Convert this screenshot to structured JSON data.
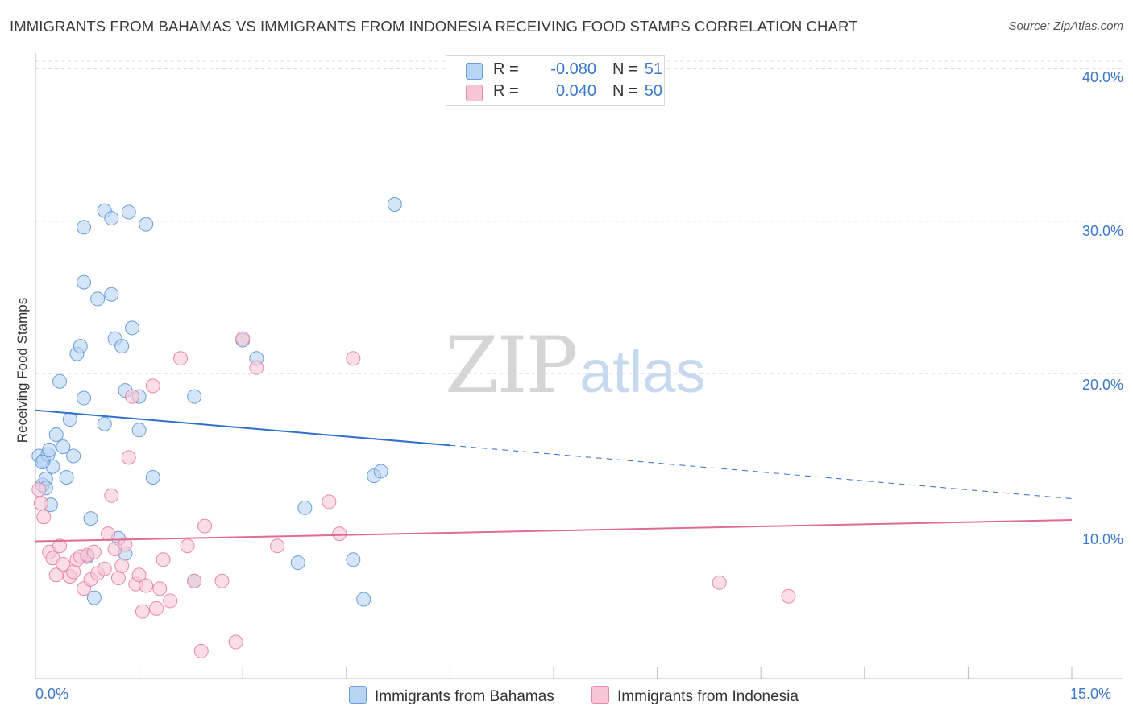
{
  "title": "IMMIGRANTS FROM BAHAMAS VS IMMIGRANTS FROM INDONESIA RECEIVING FOOD STAMPS CORRELATION CHART",
  "source": "Source: ZipAtlas.com",
  "watermark": {
    "zip": "ZIP",
    "atlas": "atlas"
  },
  "legend": {
    "rows": [
      {
        "r_label": "R =",
        "r_value": "-0.080",
        "n_label": "N =",
        "n_value": "51"
      },
      {
        "r_label": "R =",
        "r_value": "0.040",
        "n_label": "N =",
        "n_value": "50"
      }
    ]
  },
  "colors": {
    "bahamas_fill": "#b8d3f3",
    "bahamas_stroke": "#6a9fd8",
    "bahamas_line": "#2f6fcc",
    "indonesia_fill": "#f7c6d6",
    "indonesia_stroke": "#e88aa8",
    "indonesia_line": "#e06b93",
    "accent_text": "#3a78c9",
    "grid": "#dddddd"
  },
  "chart_data": {
    "type": "scatter",
    "title": "IMMIGRANTS FROM BAHAMAS VS IMMIGRANTS FROM INDONESIA RECEIVING FOOD STAMPS CORRELATION CHART",
    "xlabel": "",
    "ylabel": "Receiving Food Stamps",
    "xlim": [
      0,
      15
    ],
    "ylim": [
      0,
      40.5
    ],
    "x_tick_labels": [
      "0.0%",
      "15.0%"
    ],
    "y_ticks": [
      10,
      20,
      30,
      40
    ],
    "y_tick_labels": [
      "10.0%",
      "20.0%",
      "30.0%",
      "40.0%"
    ],
    "grid": true,
    "legend_position": "top-center",
    "series": [
      {
        "name": "Immigrants from Bahamas",
        "color": "#6a9fd8",
        "trend": {
          "x0": 0,
          "y0": 17.6,
          "x1": 6,
          "y1": 15.3,
          "dashed_to_x": 15,
          "dashed_to_y": 11.8
        },
        "points": [
          [
            0.05,
            14.6
          ],
          [
            0.1,
            12.7
          ],
          [
            0.12,
            14.3
          ],
          [
            0.15,
            13.1
          ],
          [
            0.18,
            14.7
          ],
          [
            0.2,
            15.0
          ],
          [
            0.22,
            11.4
          ],
          [
            0.25,
            13.9
          ],
          [
            0.3,
            16.0
          ],
          [
            0.35,
            19.5
          ],
          [
            0.4,
            15.2
          ],
          [
            0.45,
            13.2
          ],
          [
            0.5,
            17.0
          ],
          [
            0.55,
            14.6
          ],
          [
            0.6,
            21.3
          ],
          [
            0.65,
            21.8
          ],
          [
            0.7,
            18.4
          ],
          [
            0.75,
            8.0
          ],
          [
            0.8,
            10.5
          ],
          [
            0.85,
            5.3
          ],
          [
            0.9,
            24.9
          ],
          [
            1.0,
            16.7
          ],
          [
            0.7,
            29.6
          ],
          [
            1.0,
            30.7
          ],
          [
            1.1,
            30.2
          ],
          [
            1.35,
            30.6
          ],
          [
            1.6,
            29.8
          ],
          [
            0.7,
            26.0
          ],
          [
            1.1,
            25.2
          ],
          [
            1.15,
            22.3
          ],
          [
            1.25,
            21.8
          ],
          [
            1.4,
            23.0
          ],
          [
            1.3,
            18.9
          ],
          [
            1.5,
            18.5
          ],
          [
            1.5,
            16.3
          ],
          [
            1.7,
            13.2
          ],
          [
            1.2,
            9.2
          ],
          [
            1.3,
            8.2
          ],
          [
            2.3,
            6.4
          ],
          [
            2.3,
            18.5
          ],
          [
            3.0,
            22.2
          ],
          [
            3.2,
            21.0
          ],
          [
            3.8,
            7.6
          ],
          [
            3.9,
            11.2
          ],
          [
            4.6,
            7.8
          ],
          [
            4.75,
            5.2
          ],
          [
            4.9,
            13.3
          ],
          [
            5.0,
            13.6
          ],
          [
            5.2,
            31.1
          ],
          [
            0.1,
            14.2
          ],
          [
            0.15,
            12.5
          ]
        ]
      },
      {
        "name": "Immigrants from Indonesia",
        "color": "#e88aa8",
        "trend": {
          "x0": 0,
          "y0": 9.0,
          "x1": 15,
          "y1": 10.4
        },
        "points": [
          [
            0.05,
            12.4
          ],
          [
            0.08,
            11.5
          ],
          [
            0.12,
            10.6
          ],
          [
            0.2,
            8.3
          ],
          [
            0.25,
            7.9
          ],
          [
            0.3,
            6.8
          ],
          [
            0.35,
            8.7
          ],
          [
            0.4,
            7.5
          ],
          [
            0.5,
            6.7
          ],
          [
            0.55,
            7.0
          ],
          [
            0.6,
            7.8
          ],
          [
            0.65,
            8.0
          ],
          [
            0.7,
            5.9
          ],
          [
            0.75,
            8.1
          ],
          [
            0.8,
            6.5
          ],
          [
            0.85,
            8.3
          ],
          [
            0.9,
            6.9
          ],
          [
            1.0,
            7.2
          ],
          [
            1.05,
            9.5
          ],
          [
            1.1,
            12.0
          ],
          [
            1.15,
            8.5
          ],
          [
            1.2,
            6.6
          ],
          [
            1.25,
            7.4
          ],
          [
            1.3,
            8.8
          ],
          [
            1.35,
            14.5
          ],
          [
            1.4,
            18.5
          ],
          [
            1.45,
            6.2
          ],
          [
            1.5,
            6.8
          ],
          [
            1.55,
            4.4
          ],
          [
            1.6,
            6.1
          ],
          [
            1.7,
            19.2
          ],
          [
            1.75,
            4.6
          ],
          [
            1.8,
            5.9
          ],
          [
            1.85,
            7.8
          ],
          [
            1.95,
            5.1
          ],
          [
            2.1,
            21.0
          ],
          [
            2.2,
            8.7
          ],
          [
            2.3,
            6.4
          ],
          [
            2.4,
            1.8
          ],
          [
            2.45,
            10.0
          ],
          [
            2.7,
            6.4
          ],
          [
            2.9,
            2.4
          ],
          [
            3.0,
            22.3
          ],
          [
            3.2,
            20.4
          ],
          [
            3.5,
            8.7
          ],
          [
            4.25,
            11.6
          ],
          [
            4.4,
            9.5
          ],
          [
            4.6,
            21.0
          ],
          [
            9.9,
            6.3
          ],
          [
            10.9,
            5.4
          ]
        ]
      }
    ]
  },
  "bottom_legend": {
    "bahamas": "Immigrants from Bahamas",
    "indonesia": "Immigrants from Indonesia"
  }
}
